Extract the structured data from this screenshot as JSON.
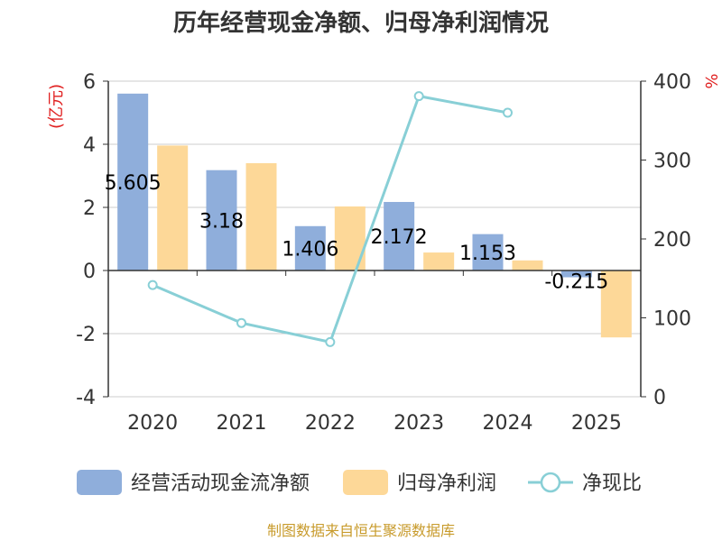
{
  "chart_data": {
    "type": "bar",
    "title": "历年经营现金净额、归母净利润情况",
    "categories": [
      "2020",
      "2021",
      "2022",
      "2023",
      "2024",
      "2025"
    ],
    "left_unit": "(亿元)",
    "right_unit": "%",
    "ylim": [
      -4,
      6
    ],
    "yticks": [
      "6",
      "4",
      "2",
      "0",
      "-2",
      "-4"
    ],
    "y2lim": [
      0,
      400
    ],
    "y2ticks": [
      "400",
      "300",
      "200",
      "100",
      "0"
    ],
    "series": [
      {
        "name": "经营活动现金流净额",
        "kind": "bar",
        "axis": "left",
        "color": "#8faedb",
        "values": [
          5.605,
          3.18,
          1.406,
          2.172,
          1.153,
          -0.215
        ],
        "labels": [
          "5.605",
          "3.18",
          "1.406",
          "2.172",
          "1.153",
          "-0.215"
        ]
      },
      {
        "name": "归母净利润",
        "kind": "bar",
        "axis": "left",
        "color": "#fdd898",
        "values": [
          3.96,
          3.4,
          2.03,
          0.57,
          0.32,
          -2.12
        ]
      },
      {
        "name": "净现比",
        "kind": "line",
        "axis": "right",
        "color": "#88cfd6",
        "values": [
          141.6,
          93.5,
          69.3,
          381.0,
          360.0,
          null
        ]
      }
    ],
    "grid": true,
    "legend": "bottom",
    "source": "制图数据来自恒生聚源数据库"
  }
}
